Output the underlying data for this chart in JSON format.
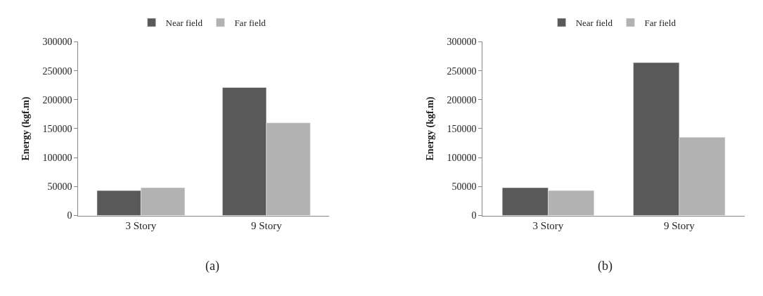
{
  "chart_data": [
    {
      "type": "bar",
      "ylabel": "Energy (kgf.m)",
      "categories": [
        "3 Story",
        "9 Story"
      ],
      "series": [
        {
          "name": "Near field",
          "color": "#595959",
          "values": [
            43000,
            221000
          ]
        },
        {
          "name": "Far field",
          "color": "#b2b2b2",
          "values": [
            48000,
            160000
          ]
        }
      ],
      "ylim": [
        0,
        300000
      ],
      "yticks": [
        0,
        50000,
        100000,
        150000,
        200000,
        250000,
        300000
      ],
      "legend": "top",
      "annotations": [
        "(a)"
      ]
    },
    {
      "type": "bar",
      "ylabel": "Energy (kgf.m)",
      "categories": [
        "3 Story",
        "9 Story"
      ],
      "series": [
        {
          "name": "Near field",
          "color": "#595959",
          "values": [
            48000,
            264000
          ]
        },
        {
          "name": "Far field",
          "color": "#b2b2b2",
          "values": [
            43000,
            135000
          ]
        }
      ],
      "ylim": [
        0,
        300000
      ],
      "yticks": [
        0,
        50000,
        100000,
        150000,
        200000,
        250000,
        300000
      ],
      "legend": "top",
      "annotations": [
        "(b)"
      ]
    }
  ]
}
